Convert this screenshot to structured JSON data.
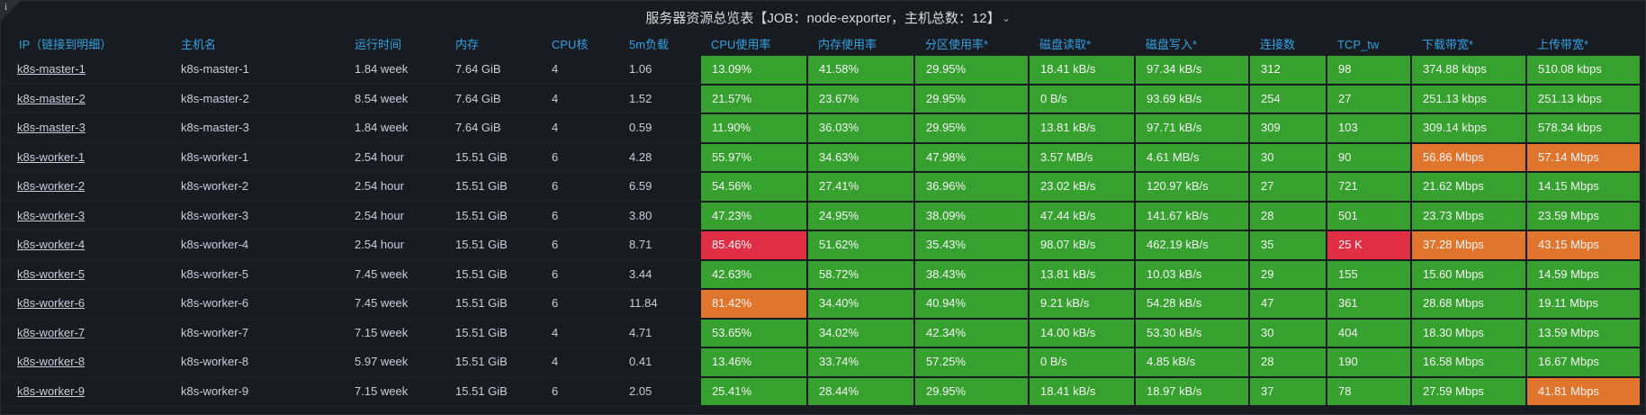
{
  "header": {
    "title": "服务器资源总览表【JOB：node-exporter，主机总数：12】"
  },
  "table": {
    "columns": [
      "IP（链接到明细）",
      "主机名",
      "运行时间",
      "内存",
      "CPU核",
      "5m负载",
      "CPU使用率",
      "内存使用率",
      "分区使用率*",
      "磁盘读取*",
      "磁盘写入*",
      "连接数",
      "TCP_tw",
      "下载带宽*",
      "上传带宽*"
    ],
    "rows": [
      [
        "k8s-master-1",
        "k8s-master-1",
        "1.84 week",
        "7.64 GiB",
        "4",
        "1.06",
        "13.09%",
        "41.58%",
        "29.95%",
        "18.41 kB/s",
        "97.34 kB/s",
        "312",
        "98",
        "374.88 kbps",
        "510.08 kbps"
      ],
      [
        "k8s-master-2",
        "k8s-master-2",
        "8.54 week",
        "7.64 GiB",
        "4",
        "1.52",
        "21.57%",
        "23.67%",
        "29.95%",
        "0 B/s",
        "93.69 kB/s",
        "254",
        "27",
        "251.13 kbps",
        "251.13 kbps"
      ],
      [
        "k8s-master-3",
        "k8s-master-3",
        "1.84 week",
        "7.64 GiB",
        "4",
        "0.59",
        "11.90%",
        "36.03%",
        "29.95%",
        "13.81 kB/s",
        "97.71 kB/s",
        "309",
        "103",
        "309.14 kbps",
        "578.34 kbps"
      ],
      [
        "k8s-worker-1",
        "k8s-worker-1",
        "2.54 hour",
        "15.51 GiB",
        "6",
        "4.28",
        "55.97%",
        "34.63%",
        "47.98%",
        "3.57 MB/s",
        "4.61 MB/s",
        "30",
        "90",
        "56.86 Mbps",
        "57.14 Mbps"
      ],
      [
        "k8s-worker-2",
        "k8s-worker-2",
        "2.54 hour",
        "15.51 GiB",
        "6",
        "6.59",
        "54.56%",
        "27.41%",
        "36.96%",
        "23.02 kB/s",
        "120.97 kB/s",
        "27",
        "721",
        "21.62 Mbps",
        "14.15 Mbps"
      ],
      [
        "k8s-worker-3",
        "k8s-worker-3",
        "2.54 hour",
        "15.51 GiB",
        "6",
        "3.80",
        "47.23%",
        "24.95%",
        "38.09%",
        "47.44 kB/s",
        "141.67 kB/s",
        "28",
        "501",
        "23.73 Mbps",
        "23.59 Mbps"
      ],
      [
        "k8s-worker-4",
        "k8s-worker-4",
        "2.54 hour",
        "15.51 GiB",
        "6",
        "8.71",
        "85.46%",
        "51.62%",
        "35.43%",
        "98.07 kB/s",
        "462.19 kB/s",
        "35",
        "25 K",
        "37.28 Mbps",
        "43.15 Mbps"
      ],
      [
        "k8s-worker-5",
        "k8s-worker-5",
        "7.45 week",
        "15.51 GiB",
        "6",
        "3.44",
        "42.63%",
        "58.72%",
        "38.43%",
        "13.81 kB/s",
        "10.03 kB/s",
        "29",
        "155",
        "15.60 Mbps",
        "14.59 Mbps"
      ],
      [
        "k8s-worker-6",
        "k8s-worker-6",
        "7.45 week",
        "15.51 GiB",
        "6",
        "11.84",
        "81.42%",
        "34.40%",
        "40.94%",
        "9.21 kB/s",
        "54.28 kB/s",
        "47",
        "361",
        "28.68 Mbps",
        "19.11 Mbps"
      ],
      [
        "k8s-worker-7",
        "k8s-worker-7",
        "7.15 week",
        "15.51 GiB",
        "4",
        "4.71",
        "53.65%",
        "34.02%",
        "42.34%",
        "14.00 kB/s",
        "53.30 kB/s",
        "30",
        "404",
        "18.30 Mbps",
        "13.59 Mbps"
      ],
      [
        "k8s-worker-8",
        "k8s-worker-8",
        "5.97 week",
        "15.51 GiB",
        "4",
        "0.41",
        "13.46%",
        "33.74%",
        "57.25%",
        "0 B/s",
        "4.85 kB/s",
        "28",
        "190",
        "16.58 Mbps",
        "16.67 Mbps"
      ],
      [
        "k8s-worker-9",
        "k8s-worker-9",
        "7.15 week",
        "15.51 GiB",
        "6",
        "2.05",
        "25.41%",
        "28.44%",
        "29.95%",
        "18.41 kB/s",
        "18.97 kB/s",
        "37",
        "78",
        "27.59 Mbps",
        "41.81 Mbps"
      ]
    ],
    "cell_colors": [
      [
        null,
        null,
        null,
        null,
        null,
        null,
        "#37a12f",
        "#37a12f",
        "#37a12f",
        "#37a12f",
        "#37a12f",
        "#37a12f",
        "#37a12f",
        "#37a12f",
        "#37a12f"
      ],
      [
        null,
        null,
        null,
        null,
        null,
        null,
        "#37a12f",
        "#37a12f",
        "#37a12f",
        "#37a12f",
        "#37a12f",
        "#37a12f",
        "#37a12f",
        "#37a12f",
        "#37a12f"
      ],
      [
        null,
        null,
        null,
        null,
        null,
        null,
        "#37a12f",
        "#37a12f",
        "#37a12f",
        "#37a12f",
        "#37a12f",
        "#37a12f",
        "#37a12f",
        "#37a12f",
        "#37a12f"
      ],
      [
        null,
        null,
        null,
        null,
        null,
        null,
        "#37a12f",
        "#37a12f",
        "#37a12f",
        "#37a12f",
        "#37a12f",
        "#37a12f",
        "#37a12f",
        "#e0752d",
        "#e0752d"
      ],
      [
        null,
        null,
        null,
        null,
        null,
        null,
        "#37a12f",
        "#37a12f",
        "#37a12f",
        "#37a12f",
        "#37a12f",
        "#37a12f",
        "#37a12f",
        "#37a12f",
        "#37a12f"
      ],
      [
        null,
        null,
        null,
        null,
        null,
        null,
        "#37a12f",
        "#37a12f",
        "#37a12f",
        "#37a12f",
        "#37a12f",
        "#37a12f",
        "#37a12f",
        "#37a12f",
        "#37a12f"
      ],
      [
        null,
        null,
        null,
        null,
        null,
        null,
        "#e02f44",
        "#37a12f",
        "#37a12f",
        "#37a12f",
        "#37a12f",
        "#37a12f",
        "#e02f44",
        "#e0752d",
        "#e0752d"
      ],
      [
        null,
        null,
        null,
        null,
        null,
        null,
        "#37a12f",
        "#37a12f",
        "#37a12f",
        "#37a12f",
        "#37a12f",
        "#37a12f",
        "#37a12f",
        "#37a12f",
        "#37a12f"
      ],
      [
        null,
        null,
        null,
        null,
        null,
        null,
        "#e0752d",
        "#37a12f",
        "#37a12f",
        "#37a12f",
        "#37a12f",
        "#37a12f",
        "#37a12f",
        "#37a12f",
        "#37a12f"
      ],
      [
        null,
        null,
        null,
        null,
        null,
        null,
        "#37a12f",
        "#37a12f",
        "#37a12f",
        "#37a12f",
        "#37a12f",
        "#37a12f",
        "#37a12f",
        "#37a12f",
        "#37a12f"
      ],
      [
        null,
        null,
        null,
        null,
        null,
        null,
        "#37a12f",
        "#37a12f",
        "#37a12f",
        "#37a12f",
        "#37a12f",
        "#37a12f",
        "#37a12f",
        "#37a12f",
        "#37a12f"
      ],
      [
        null,
        null,
        null,
        null,
        null,
        null,
        "#37a12f",
        "#37a12f",
        "#37a12f",
        "#37a12f",
        "#37a12f",
        "#37a12f",
        "#37a12f",
        "#37a12f",
        "#e0752d"
      ]
    ]
  }
}
